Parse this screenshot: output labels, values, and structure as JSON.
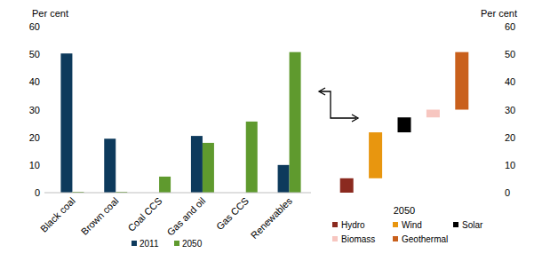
{
  "chart_data": [
    {
      "type": "bar",
      "y_label": "Per cent",
      "categories": [
        "Black coal",
        "Brown coal",
        "Coal CCS",
        "Gas and oil",
        "Gas CCS",
        "Renewables"
      ],
      "series": [
        {
          "name": "2011",
          "color": "#0d3a5c",
          "values": [
            50.3,
            19.5,
            0,
            20.5,
            0,
            10
          ]
        },
        {
          "name": "2050",
          "color": "#5f9a2e",
          "values": [
            0.3,
            0.3,
            5.8,
            18,
            25.7,
            50.8
          ]
        }
      ],
      "ylim": [
        0,
        60
      ],
      "yticks": [
        0,
        10,
        20,
        30,
        40,
        50,
        60
      ],
      "legend": "bottom",
      "grid": false
    },
    {
      "type": "waterfall",
      "y_label": "Per cent",
      "x_label": "2050",
      "categories": [
        "Hydro",
        "Wind",
        "Solar",
        "Biomass",
        "Geothermal"
      ],
      "values": [
        5.2,
        16.6,
        5.4,
        2.8,
        20.8
      ],
      "colors": [
        "#8b2a1f",
        "#e8960f",
        "#000000",
        "#f7c6c0",
        "#c9601c"
      ],
      "ylim": [
        0,
        60
      ],
      "yticks": [
        0,
        10,
        20,
        30,
        40,
        50,
        60
      ],
      "legend": "bottom",
      "stacked": true,
      "tick_labels": "y",
      "grid": false
    }
  ]
}
